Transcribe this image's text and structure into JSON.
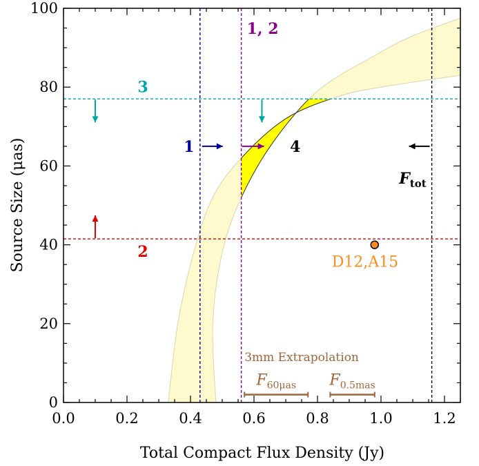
{
  "chart_data": {
    "type": "line",
    "title": "",
    "xlabel": "Total Compact Flux Density (Jy)",
    "ylabel": "Source Size (μas)",
    "xlim": [
      0.0,
      1.25
    ],
    "ylim": [
      0,
      100
    ],
    "x_ticks": [
      "0.0",
      "0.2",
      "0.4",
      "0.6",
      "0.8",
      "1.0",
      "1.2"
    ],
    "y_ticks": [
      "0",
      "20",
      "40",
      "60",
      "80",
      "100"
    ],
    "x_tick_values": [
      0.0,
      0.2,
      0.4,
      0.6,
      0.8,
      1.0,
      1.2
    ],
    "y_tick_values": [
      0,
      20,
      40,
      60,
      80,
      100
    ],
    "grid": false,
    "band": {
      "description_color": "#fffacd",
      "lower_edge": [
        [
          0.33,
          0
        ],
        [
          0.36,
          20
        ],
        [
          0.41,
          38
        ],
        [
          0.47,
          52
        ],
        [
          0.56,
          62
        ],
        [
          0.7,
          72
        ],
        [
          0.86,
          77.5
        ],
        [
          1.0,
          80
        ],
        [
          1.25,
          83
        ]
      ],
      "upper_edge": [
        [
          0.48,
          0
        ],
        [
          0.47,
          20
        ],
        [
          0.5,
          38
        ],
        [
          0.56,
          52
        ],
        [
          0.66,
          66
        ],
        [
          0.8,
          79
        ],
        [
          0.98,
          88
        ],
        [
          1.1,
          93
        ],
        [
          1.25,
          97.5
        ]
      ]
    },
    "highlight_region_label": "4",
    "highlight_color": "#ffff00",
    "constraints": [
      {
        "label": "1",
        "axis": "x",
        "value": 0.43,
        "color": "#000099",
        "direction": "right"
      },
      {
        "label": "1, 2",
        "axis": "x",
        "value": 0.56,
        "color": "#8b008b",
        "direction": "right"
      },
      {
        "label": "F_tot",
        "axis": "x",
        "value": 1.16,
        "color": "#000000",
        "direction": "left"
      },
      {
        "label": "3",
        "axis": "y",
        "value": 77,
        "color": "#00a6a6",
        "direction": "down"
      },
      {
        "label": "2",
        "axis": "y",
        "value": 41.5,
        "color": "#e00000",
        "direction": "up"
      }
    ],
    "point": {
      "label": "D12,A15",
      "x": 0.98,
      "y": 40,
      "color": "#ff8c1a"
    },
    "extrapolation": {
      "title": "3mm Extrapolation",
      "color": "#a0653a",
      "bars": [
        {
          "label": "F",
          "subscript": "60μas",
          "x_start": 0.57,
          "x_end": 0.77,
          "y": 2
        },
        {
          "label": "F",
          "subscript": "0.5mas",
          "x_start": 0.84,
          "x_end": 0.98,
          "y": 2
        }
      ]
    }
  }
}
